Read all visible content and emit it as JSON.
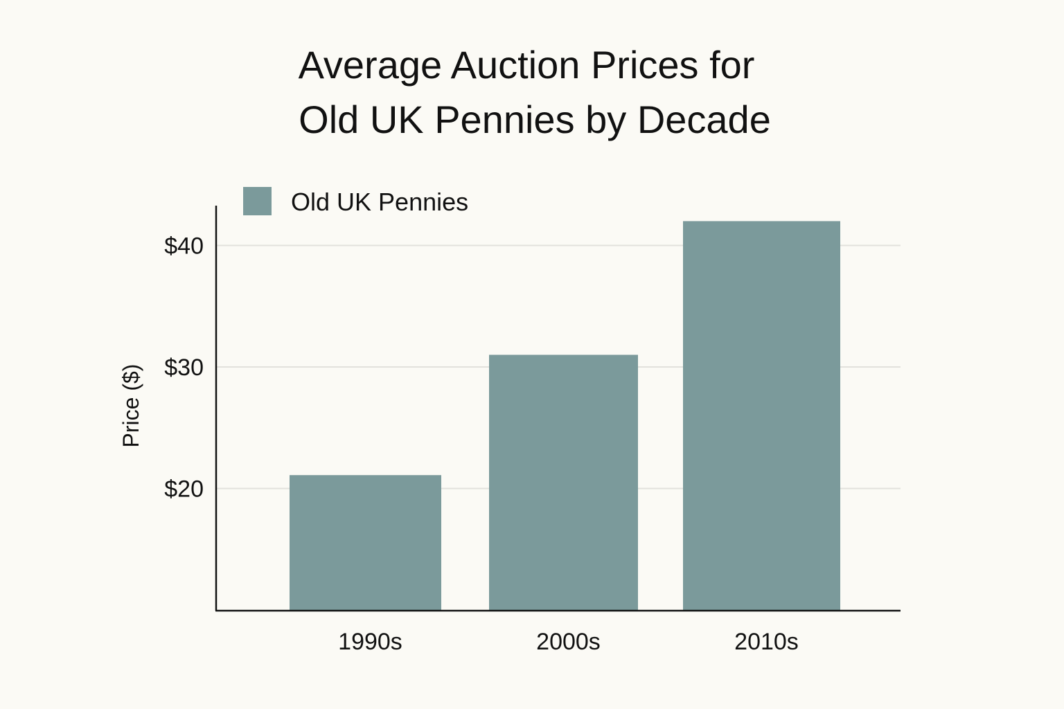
{
  "chart_data": {
    "type": "bar",
    "title_lines": [
      "Average Auction Prices for",
      "Old UK Pennies by Decade"
    ],
    "categories": [
      "1990s",
      "2000s",
      "2010s"
    ],
    "series": [
      {
        "name": "Old UK Pennies",
        "values": [
          21.1,
          31.0,
          42.0
        ],
        "color": "#7b9a9b"
      }
    ],
    "xlabel": "",
    "ylabel": "Price ($)",
    "ylim": [
      10,
      43.5
    ],
    "yticks": [
      20,
      30,
      40
    ],
    "ytick_labels": [
      "$20",
      "$30",
      "$40"
    ],
    "grid": true,
    "legend_position": "top-left"
  }
}
